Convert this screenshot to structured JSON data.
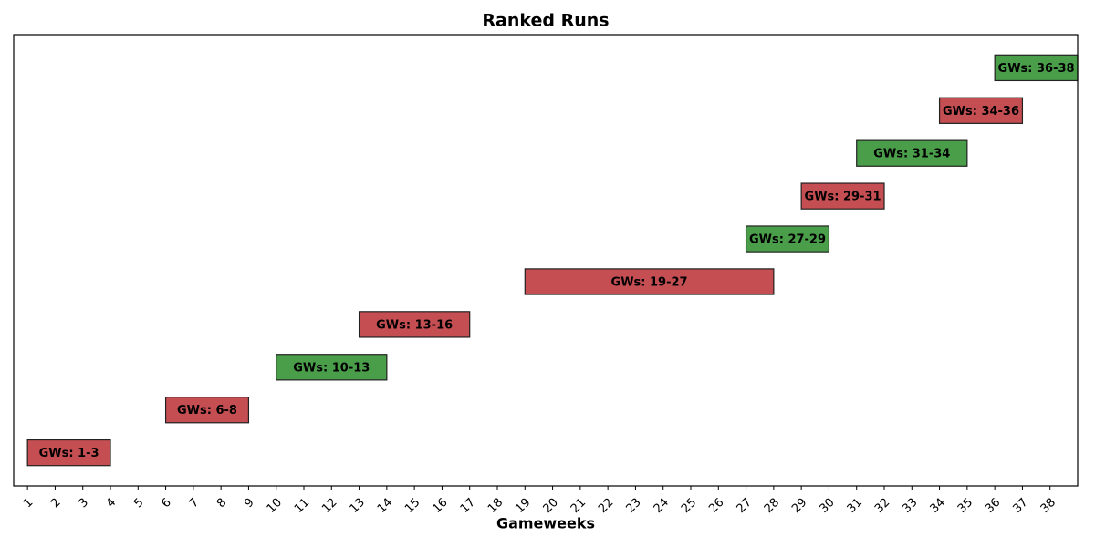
{
  "chart_data": {
    "type": "gantt",
    "title": "Ranked Runs",
    "x_label": "Gameweeks",
    "xlim": [
      0.5,
      39
    ],
    "xticks": [
      1,
      2,
      3,
      4,
      5,
      6,
      7,
      8,
      9,
      10,
      11,
      12,
      13,
      14,
      15,
      16,
      17,
      18,
      19,
      20,
      21,
      22,
      23,
      24,
      25,
      26,
      27,
      28,
      29,
      30,
      31,
      32,
      33,
      34,
      35,
      36,
      37,
      38
    ],
    "tasks": [
      {
        "label": "GWs: 1-3",
        "start": 1,
        "end": 4,
        "color": "#c44e52"
      },
      {
        "label": "GWs: 6-8",
        "start": 6,
        "end": 9,
        "color": "#c44e52"
      },
      {
        "label": "GWs: 10-13",
        "start": 10,
        "end": 14,
        "color": "#4a9e4a"
      },
      {
        "label": "GWs: 13-16",
        "start": 13,
        "end": 17,
        "color": "#c44e52"
      },
      {
        "label": "GWs: 19-27",
        "start": 19,
        "end": 28,
        "color": "#c44e52"
      },
      {
        "label": "GWs: 27-29",
        "start": 27,
        "end": 30,
        "color": "#4a9e4a"
      },
      {
        "label": "GWs: 29-31",
        "start": 29,
        "end": 32,
        "color": "#c44e52"
      },
      {
        "label": "GWs: 31-34",
        "start": 31,
        "end": 35,
        "color": "#4a9e4a"
      },
      {
        "label": "GWs: 34-36",
        "start": 34,
        "end": 37,
        "color": "#c44e52"
      },
      {
        "label": "GWs: 36-38",
        "start": 36,
        "end": 39,
        "color": "#4a9e4a"
      }
    ]
  }
}
